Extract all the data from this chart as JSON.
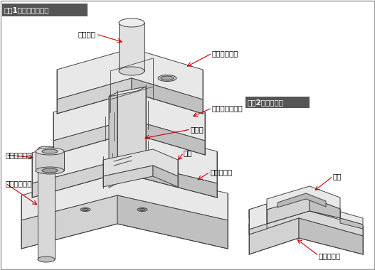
{
  "title1": "『図1』分断型の構造",
  "title2": "『図2』加工状態",
  "bg_color": "#ffffff",
  "line_color": "#444444",
  "arrow_color": "#cc0000",
  "labels": {
    "shank": "シャンク",
    "punch_holder": "パンチホルダ",
    "punch_plate": "パンチプレート",
    "punch": "パンチ",
    "die": "ダイ",
    "die_holder": "ダイホルダ",
    "guide_bush": "ガイドブシュ",
    "guide_post": "ガイドポスト",
    "product": "製品",
    "scrap": "スクラップ"
  },
  "face_top": "#e8e8e8",
  "face_left": "#d2d2d2",
  "face_right": "#c0c0c0",
  "face_white": "#f2f2f2",
  "fig_width": 5.27,
  "fig_height": 3.8,
  "dpi": 100
}
